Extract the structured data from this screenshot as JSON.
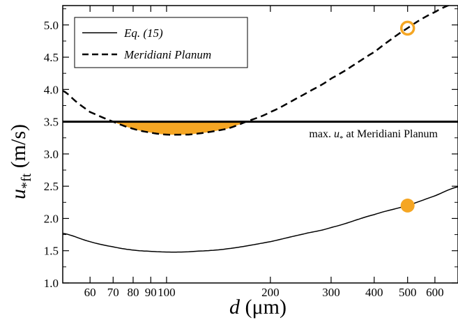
{
  "chart_data": {
    "type": "line",
    "xlabel_symbol": "d",
    "xlabel_unit": "(μm)",
    "ylabel_symbol": "u",
    "ylabel_subscript": "*ft",
    "ylabel_unit": "(m/s)",
    "x_scale": "log",
    "xlim": [
      50,
      700
    ],
    "ylim": [
      1.0,
      5.3
    ],
    "x_ticks": [
      60,
      70,
      80,
      90,
      100,
      200,
      300,
      400,
      500,
      600
    ],
    "x_tick_labels": [
      "60",
      "70",
      "80",
      "90",
      "100",
      "200",
      "300",
      "400",
      "500",
      "600"
    ],
    "y_ticks": [
      1.0,
      1.5,
      2.0,
      2.5,
      3.0,
      3.5,
      4.0,
      4.5,
      5.0
    ],
    "y_tick_labels": [
      "1.0",
      "1.5",
      "2.0",
      "2.5",
      "3.0",
      "3.5",
      "4.0",
      "4.5",
      "5.0"
    ],
    "legend_position": "top-left",
    "series": [
      {
        "name": "Eq. (15)",
        "style": "solid",
        "x": [
          50,
          60,
          70,
          80,
          90,
          100,
          110,
          120,
          150,
          200,
          250,
          300,
          400,
          500,
          600,
          700
        ],
        "y": [
          1.77,
          1.64,
          1.56,
          1.51,
          1.49,
          1.48,
          1.48,
          1.49,
          1.53,
          1.64,
          1.76,
          1.86,
          2.06,
          2.2,
          2.35,
          2.49
        ]
      },
      {
        "name": "Meridiani Planum",
        "style": "dashed",
        "x": [
          50,
          55,
          60,
          70,
          80,
          90,
          100,
          110,
          120,
          150,
          170,
          200,
          250,
          300,
          400,
          500,
          600,
          700
        ],
        "y": [
          3.98,
          3.8,
          3.65,
          3.5,
          3.39,
          3.33,
          3.3,
          3.3,
          3.31,
          3.39,
          3.5,
          3.65,
          3.92,
          4.17,
          4.58,
          4.95,
          5.2,
          5.35
        ]
      }
    ],
    "threshold": {
      "value": 3.5,
      "label_prefix": "max. ",
      "label_symbol": "u",
      "label_subscript": "*",
      "label_suffix": " at Meridiani Planum"
    },
    "shaded_region": {
      "x_from": 70,
      "x_to": 170,
      "below": 3.5,
      "color": "#f5a623"
    },
    "markers": [
      {
        "x": 500,
        "y": 2.2,
        "style": "filled",
        "color": "#f5a623"
      },
      {
        "x": 500,
        "y": 4.95,
        "style": "open",
        "color": "#f5a623"
      }
    ]
  }
}
